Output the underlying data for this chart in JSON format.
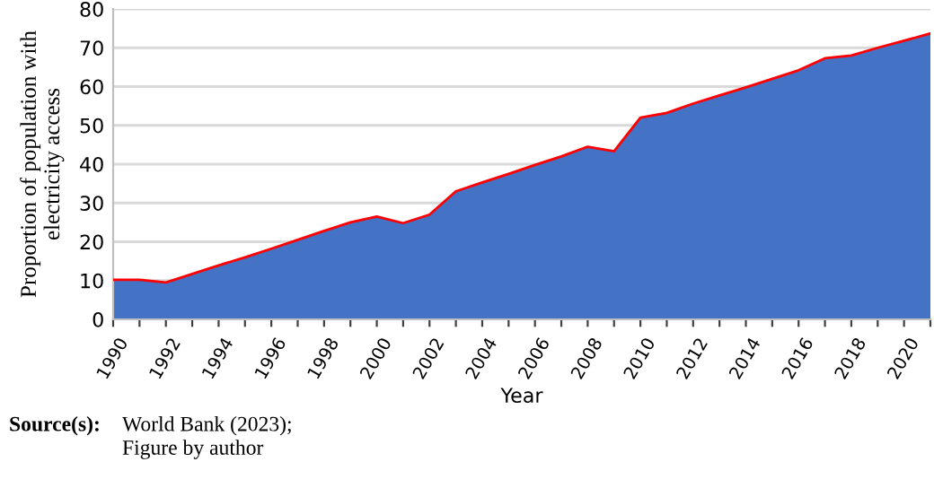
{
  "chart_data": {
    "type": "area",
    "xlabel": "Year",
    "ylabel": "Proportion of population with electricity access",
    "categories": [
      "1990",
      null,
      "1992",
      null,
      "1994",
      null,
      "1996",
      null,
      "1998",
      null,
      "2000",
      null,
      "2002",
      null,
      "2004",
      null,
      "2006",
      null,
      "2008",
      null,
      "2010",
      null,
      "2012",
      null,
      "2014",
      null,
      "2016",
      null,
      "2018",
      null,
      "2020",
      null
    ],
    "series": [
      {
        "color": "#4472c4",
        "values": [
          10.2,
          10.2,
          9.5,
          11.7,
          13.9,
          16,
          18.2,
          20.5,
          22.8,
          25,
          26.5,
          24.8,
          27,
          33,
          35.3,
          37.5,
          39.8,
          42,
          44.5,
          43.3,
          52,
          53.2,
          55.6,
          57.7,
          59.8,
          62,
          64.2,
          67.3,
          68,
          70,
          71.8,
          73.7
        ]
      },
      {
        "type": "line",
        "color": "#ff0000",
        "values": [
          10.2,
          10.2,
          9.5,
          11.7,
          13.9,
          16,
          18.2,
          20.5,
          22.8,
          25,
          26.5,
          24.8,
          27,
          33,
          35.3,
          37.5,
          39.8,
          42,
          44.5,
          43.3,
          52,
          53.2,
          55.6,
          57.7,
          59.8,
          62,
          64.2,
          67.3,
          68,
          70,
          71.8,
          73.7
        ]
      }
    ],
    "ylim": [
      0,
      80
    ],
    "yticks": [
      0,
      10,
      20,
      30,
      40,
      50,
      60,
      70,
      80
    ],
    "grid": "y",
    "legend": false,
    "annotations": [
      "Source(s):",
      "World Bank (2023);\nFigure by author"
    ]
  }
}
